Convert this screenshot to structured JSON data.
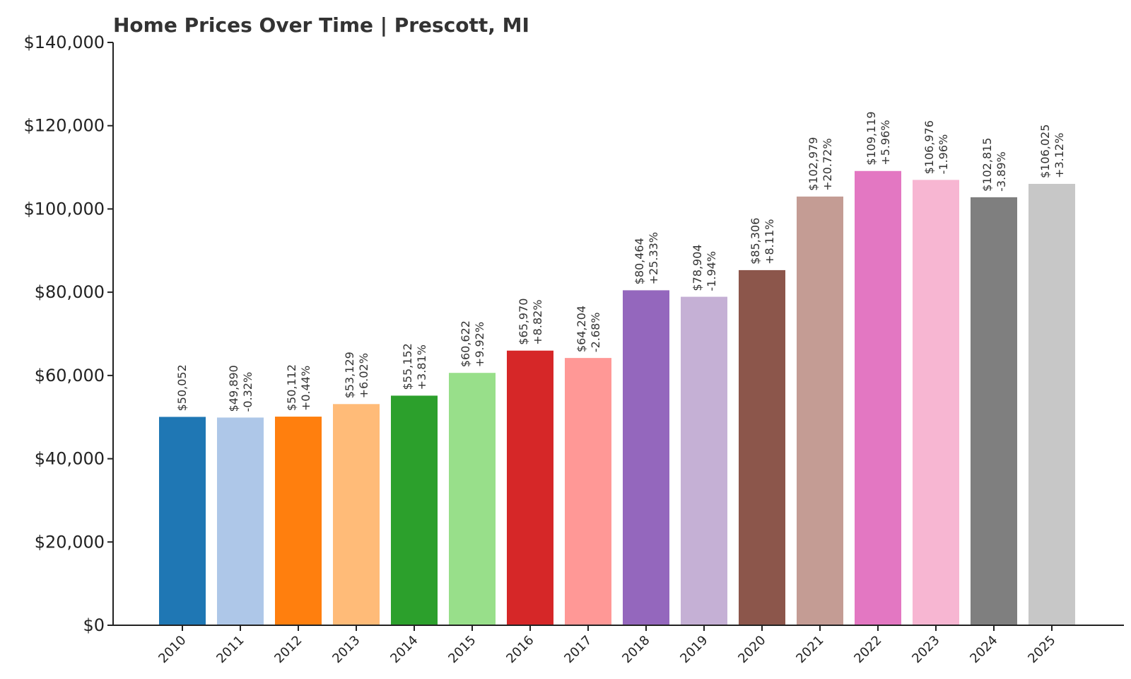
{
  "chart_data": {
    "type": "bar",
    "title": "Home Prices Over Time | Prescott, MI",
    "xlabel": "",
    "ylabel": "",
    "ylim": [
      0,
      140000
    ],
    "grid": false,
    "y_ticks": [
      {
        "value": 0,
        "label": "$0"
      },
      {
        "value": 20000,
        "label": "$20,000"
      },
      {
        "value": 40000,
        "label": "$40,000"
      },
      {
        "value": 60000,
        "label": "$60,000"
      },
      {
        "value": 80000,
        "label": "$80,000"
      },
      {
        "value": 100000,
        "label": "$100,000"
      },
      {
        "value": 120000,
        "label": "$120,000"
      },
      {
        "value": 140000,
        "label": "$140,000"
      }
    ],
    "categories": [
      "2010",
      "2011",
      "2012",
      "2013",
      "2014",
      "2015",
      "2016",
      "2017",
      "2018",
      "2019",
      "2020",
      "2021",
      "2022",
      "2023",
      "2024",
      "2025"
    ],
    "values": [
      50052,
      49890,
      50112,
      53129,
      55152,
      60622,
      65970,
      64204,
      80464,
      78904,
      85306,
      102979,
      109119,
      106976,
      102815,
      106025
    ],
    "value_labels": [
      "$50,052",
      "$49,890",
      "$50,112",
      "$53,129",
      "$55,152",
      "$60,622",
      "$65,970",
      "$64,204",
      "$80,464",
      "$78,904",
      "$85,306",
      "$102,979",
      "$109,119",
      "$106,976",
      "$102,815",
      "$106,025"
    ],
    "change_labels": [
      "",
      "-0.32%",
      "+0.44%",
      "+6.02%",
      "+3.81%",
      "+9.92%",
      "+8.82%",
      "-2.68%",
      "+25.33%",
      "-1.94%",
      "+8.11%",
      "+20.72%",
      "+5.96%",
      "-1.96%",
      "-3.89%",
      "+3.12%"
    ],
    "colors": [
      "#1f77b4",
      "#aec7e8",
      "#ff7f0e",
      "#ffbb78",
      "#2ca02c",
      "#98df8a",
      "#d62728",
      "#ff9896",
      "#9467bd",
      "#c5b0d5",
      "#8c564b",
      "#c49c94",
      "#e377c2",
      "#f7b6d2",
      "#7f7f7f",
      "#c7c7c7"
    ]
  }
}
